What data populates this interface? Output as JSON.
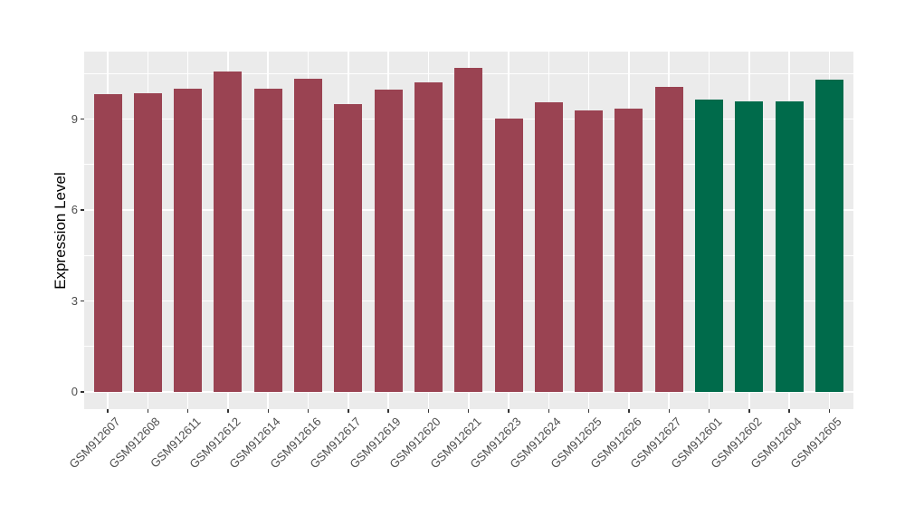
{
  "figure": {
    "background_color": "#FFFFFF",
    "panel_background_color": "#EBEBEB",
    "grid_color": "#FFFFFF",
    "tick_mark_color": "#333333",
    "axis_text_color": "#4D4D4D",
    "axis_title_color": "#000000"
  },
  "chart_data": {
    "type": "bar",
    "title": "",
    "xlabel": "",
    "ylabel": "Expression Level",
    "categories": [
      "GSM912607",
      "GSM912608",
      "GSM912611",
      "GSM912612",
      "GSM912614",
      "GSM912616",
      "GSM912617",
      "GSM912619",
      "GSM912620",
      "GSM912621",
      "GSM912623",
      "GSM912624",
      "GSM912625",
      "GSM912626",
      "GSM912627",
      "GSM912601",
      "GSM912602",
      "GSM912604",
      "GSM912605"
    ],
    "values": [
      9.84,
      9.87,
      10.02,
      10.57,
      10.01,
      10.34,
      9.5,
      9.97,
      10.21,
      10.7,
      9.02,
      9.55,
      9.28,
      9.35,
      10.07,
      9.64,
      9.59,
      9.59,
      10.31
    ],
    "bar_groups": [
      "maroon",
      "maroon",
      "maroon",
      "maroon",
      "maroon",
      "maroon",
      "maroon",
      "maroon",
      "maroon",
      "maroon",
      "maroon",
      "maroon",
      "maroon",
      "maroon",
      "maroon",
      "green",
      "green",
      "green",
      "green"
    ],
    "group_colors": {
      "maroon": "#9A4352",
      "green": "#006B4B"
    },
    "y_ticks": [
      0,
      3,
      6,
      9
    ],
    "y_minor_ticks": [
      1.5,
      4.5,
      7.5,
      10.5
    ],
    "ylim": [
      -0.55,
      11.23
    ],
    "x_tick_angle": -45,
    "grid": "white major and minor horizontal, major vertical at category centers",
    "legend_position": "none"
  }
}
